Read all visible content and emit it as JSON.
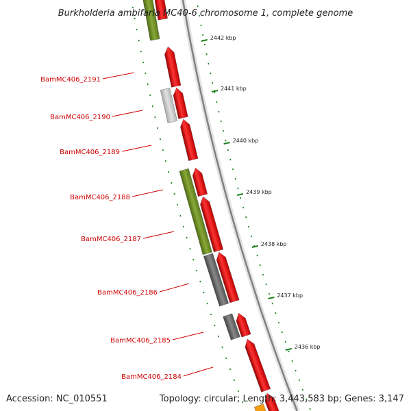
{
  "title": "Burkholderia ambifaria MC40-6 chromosome 1, complete genome",
  "footer": {
    "accession": "Accession: NC_010551",
    "summary": "Topology: circular; Length: 3,443,583 bp; Genes: 3,147"
  },
  "scale_labels": [
    "2442 kbp",
    "2441 kbp",
    "2440 kbp",
    "2439 kbp",
    "2438 kbp",
    "2437 kbp",
    "2436 kbp"
  ],
  "gene_labels": [
    "BamMC406_2191",
    "BamMC406_2190",
    "BamMC406_2189",
    "BamMC406_2188",
    "BamMC406_2187",
    "BamMC406_2186",
    "BamMC406_2185",
    "BamMC406_2184"
  ],
  "colors": {
    "forward_gene": "#ee1111",
    "olive_gene": "#6b8e23",
    "dark_gene": "#666666",
    "light_gene": "#c8c8c8",
    "backbone": "#808080",
    "ticks": "#1a7f1a",
    "label_text": "#cc0000"
  }
}
